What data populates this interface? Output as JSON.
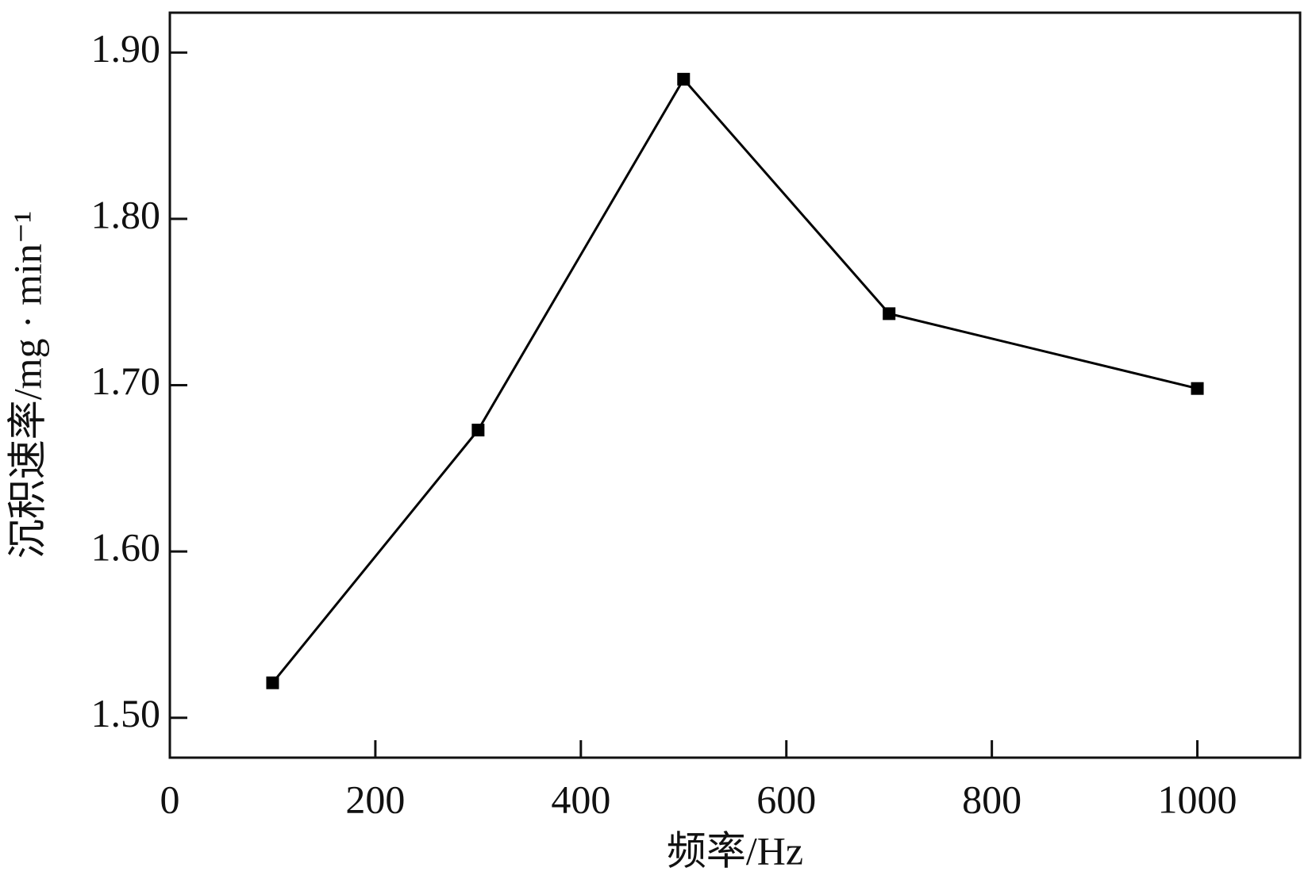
{
  "chart_data": {
    "type": "line",
    "xlabel": "频率/Hz",
    "ylabel": "沉积速率/mg · min⁻¹",
    "x": [
      100,
      300,
      500,
      700,
      1000
    ],
    "series": [
      {
        "color": "#000000",
        "values": [
          1.521,
          1.673,
          1.884,
          1.743,
          1.698
        ]
      }
    ],
    "xlim": [
      0,
      1100
    ],
    "ylim": [
      1.476,
      1.924
    ],
    "xticks": [
      0,
      200,
      400,
      600,
      800,
      1000
    ],
    "yticks": [
      {
        "value": 1.5,
        "label": "1.50"
      },
      {
        "value": 1.6,
        "label": "1.60"
      },
      {
        "value": 1.7,
        "label": "1.70"
      },
      {
        "value": 1.8,
        "label": "1.80"
      },
      {
        "value": 1.9,
        "label": "1.90"
      }
    ],
    "grid": false
  }
}
